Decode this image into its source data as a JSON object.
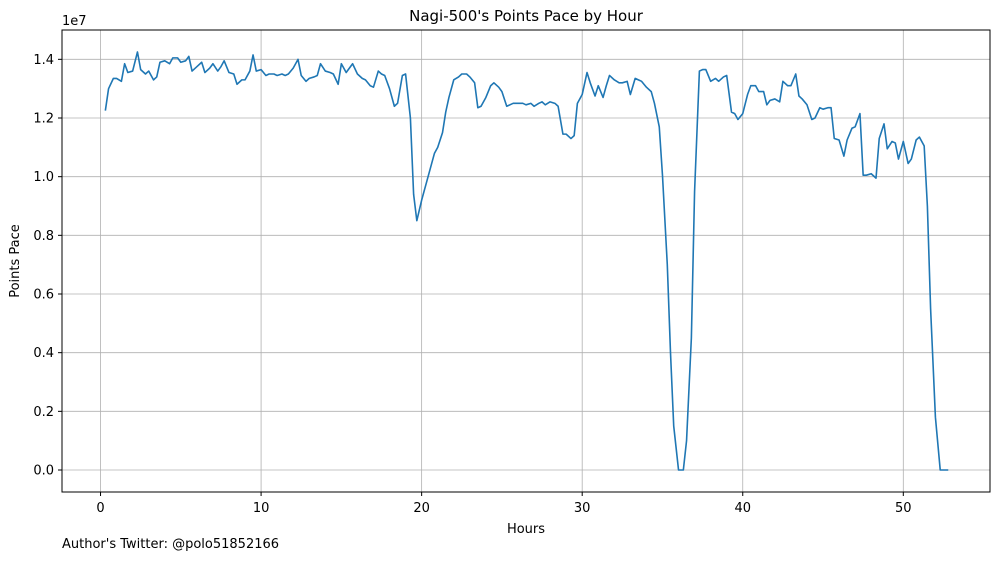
{
  "chart_data": {
    "type": "line",
    "title": "Nagi-500's Points Pace by Hour",
    "xlabel": "Hours",
    "ylabel": "Points Pace",
    "y_offset_label": "1e7",
    "y_multiplier": 10000000,
    "xlim": [
      -2.4,
      55.4
    ],
    "ylim": [
      -0.075,
      1.5
    ],
    "x_ticks": [
      0,
      10,
      20,
      30,
      40,
      50
    ],
    "y_ticks": [
      0.0,
      0.2,
      0.4,
      0.6,
      0.8,
      1.0,
      1.2,
      1.4
    ],
    "x_tick_labels": [
      "0",
      "10",
      "20",
      "30",
      "40",
      "50"
    ],
    "y_tick_labels": [
      "0.0",
      "0.2",
      "0.4",
      "0.6",
      "0.8",
      "1.0",
      "1.2",
      "1.4"
    ],
    "grid": true,
    "line_color": "#1f77b4",
    "series": [
      {
        "name": "Points Pace",
        "x": [
          0.3,
          0.5,
          0.8,
          1.0,
          1.3,
          1.5,
          1.7,
          2.0,
          2.3,
          2.5,
          2.8,
          3.0,
          3.3,
          3.5,
          3.7,
          4.0,
          4.3,
          4.5,
          4.8,
          5.0,
          5.3,
          5.5,
          5.7,
          6.0,
          6.3,
          6.5,
          6.8,
          7.0,
          7.3,
          7.5,
          7.7,
          8.0,
          8.3,
          8.5,
          8.8,
          9.0,
          9.3,
          9.5,
          9.7,
          10.0,
          10.3,
          10.5,
          10.8,
          11.0,
          11.3,
          11.5,
          11.7,
          12.0,
          12.3,
          12.5,
          12.8,
          13.0,
          13.3,
          13.5,
          13.7,
          14.0,
          14.3,
          14.5,
          14.8,
          15.0,
          15.3,
          15.5,
          15.7,
          16.0,
          16.3,
          16.5,
          16.8,
          17.0,
          17.3,
          17.5,
          17.7,
          18.0,
          18.3,
          18.5,
          18.8,
          19.0,
          19.3,
          19.5,
          19.7,
          20.0,
          20.3,
          20.5,
          20.8,
          21.0,
          21.3,
          21.5,
          21.7,
          22.0,
          22.3,
          22.5,
          22.8,
          23.0,
          23.3,
          23.5,
          23.7,
          24.0,
          24.3,
          24.5,
          24.8,
          25.0,
          25.3,
          25.5,
          25.7,
          26.0,
          26.3,
          26.5,
          26.8,
          27.0,
          27.3,
          27.5,
          27.7,
          28.0,
          28.3,
          28.5,
          28.8,
          29.0,
          29.3,
          29.5,
          29.7,
          30.0,
          30.3,
          30.5,
          30.8,
          31.0,
          31.3,
          31.5,
          31.7,
          32.0,
          32.3,
          32.5,
          32.8,
          33.0,
          33.3,
          33.5,
          33.7,
          34.0,
          34.3,
          34.5,
          34.8,
          35.0,
          35.3,
          35.5,
          35.7,
          36.0,
          36.3,
          36.5,
          36.8,
          37.0,
          37.3,
          37.5,
          37.7,
          38.0,
          38.3,
          38.5,
          38.8,
          39.0,
          39.3,
          39.5,
          39.7,
          40.0,
          40.3,
          40.5,
          40.8,
          41.0,
          41.3,
          41.5,
          41.7,
          42.0,
          42.3,
          42.5,
          42.8,
          43.0,
          43.3,
          43.5,
          43.7,
          44.0,
          44.3,
          44.5,
          44.8,
          45.0,
          45.3,
          45.5,
          45.7,
          46.0,
          46.3,
          46.5,
          46.8,
          47.0,
          47.3,
          47.5,
          47.7,
          48.0,
          48.3,
          48.5,
          48.8,
          49.0,
          49.3,
          49.5,
          49.7,
          50.0,
          50.3,
          50.5,
          50.8,
          51.0,
          51.3,
          51.5,
          51.7,
          52.0,
          52.3,
          52.5,
          52.8
        ],
        "y": [
          1.225,
          1.3,
          1.335,
          1.335,
          1.325,
          1.385,
          1.355,
          1.36,
          1.425,
          1.365,
          1.35,
          1.36,
          1.33,
          1.34,
          1.39,
          1.395,
          1.385,
          1.405,
          1.405,
          1.39,
          1.395,
          1.41,
          1.36,
          1.375,
          1.39,
          1.355,
          1.37,
          1.385,
          1.36,
          1.375,
          1.395,
          1.355,
          1.35,
          1.315,
          1.33,
          1.33,
          1.36,
          1.415,
          1.36,
          1.365,
          1.345,
          1.35,
          1.35,
          1.345,
          1.35,
          1.345,
          1.35,
          1.37,
          1.4,
          1.345,
          1.325,
          1.335,
          1.34,
          1.345,
          1.385,
          1.36,
          1.355,
          1.35,
          1.315,
          1.385,
          1.355,
          1.37,
          1.385,
          1.35,
          1.335,
          1.33,
          1.31,
          1.305,
          1.36,
          1.35,
          1.345,
          1.3,
          1.24,
          1.25,
          1.345,
          1.35,
          1.2,
          0.94,
          0.85,
          0.92,
          0.98,
          1.02,
          1.08,
          1.1,
          1.15,
          1.22,
          1.27,
          1.33,
          1.34,
          1.35,
          1.35,
          1.34,
          1.32,
          1.235,
          1.24,
          1.27,
          1.31,
          1.32,
          1.305,
          1.29,
          1.24,
          1.245,
          1.25,
          1.25,
          1.25,
          1.245,
          1.25,
          1.24,
          1.25,
          1.255,
          1.245,
          1.255,
          1.25,
          1.24,
          1.145,
          1.145,
          1.13,
          1.14,
          1.25,
          1.28,
          1.355,
          1.32,
          1.275,
          1.31,
          1.27,
          1.31,
          1.345,
          1.33,
          1.32,
          1.32,
          1.325,
          1.28,
          1.335,
          1.33,
          1.325,
          1.305,
          1.29,
          1.25,
          1.17,
          1.005,
          0.7,
          0.4,
          0.15,
          0.0,
          0.0,
          0.1,
          0.45,
          0.95,
          1.36,
          1.365,
          1.365,
          1.325,
          1.335,
          1.325,
          1.34,
          1.345,
          1.22,
          1.215,
          1.195,
          1.215,
          1.28,
          1.31,
          1.31,
          1.29,
          1.29,
          1.245,
          1.26,
          1.265,
          1.255,
          1.325,
          1.31,
          1.31,
          1.35,
          1.275,
          1.265,
          1.245,
          1.195,
          1.2,
          1.235,
          1.23,
          1.235,
          1.235,
          1.13,
          1.125,
          1.07,
          1.125,
          1.165,
          1.17,
          1.215,
          1.005,
          1.005,
          1.01,
          0.995,
          1.13,
          1.18,
          1.095,
          1.12,
          1.115,
          1.06,
          1.12,
          1.045,
          1.06,
          1.125,
          1.135,
          1.105,
          0.9,
          0.55,
          0.18,
          0.0,
          0.0,
          0.0
        ]
      }
    ]
  },
  "footnote": "Author's Twitter: @polo51852166"
}
